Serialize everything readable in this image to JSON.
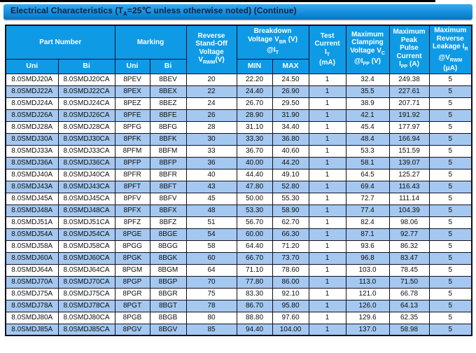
{
  "title": {
    "segments": [
      [
        "t",
        "Electrical Characteristics (T"
      ],
      [
        "s",
        "A"
      ],
      [
        "t",
        "=25℃  unless otherwise noted) (Continue)"
      ]
    ]
  },
  "colors": {
    "title_bar_top": "#3aa9ee",
    "title_bar_mid": "#1590dd",
    "title_bar_bottom": "#0b76c4",
    "title_text": "#0d1f3c",
    "header_bg": "#0f9ae6",
    "row_alt_bg": "#a5c8f0",
    "grid_border": "#10101e"
  },
  "table": {
    "headers": {
      "part_number": "Part Number",
      "marking": "Marking",
      "uni": "Uni",
      "bi": "Bi",
      "min": "MIN",
      "max": "MAX",
      "reverse_standoff": [
        [
          "t",
          "Reverse"
        ],
        [
          "b",
          ""
        ],
        [
          "t",
          "Stand-Off"
        ],
        [
          "b",
          ""
        ],
        [
          "t",
          "Voltage"
        ],
        [
          "b",
          ""
        ],
        [
          "t",
          "V"
        ],
        [
          "s",
          "RWM"
        ],
        [
          "t",
          "(V)"
        ]
      ],
      "breakdown": [
        [
          "t",
          "Breakdown"
        ],
        [
          "b",
          ""
        ],
        [
          "t",
          "Voltage V"
        ],
        [
          "s",
          "BR"
        ],
        [
          "t",
          "  (V)"
        ],
        [
          "b",
          ""
        ],
        [
          "t",
          "@I"
        ],
        [
          "s",
          "T"
        ]
      ],
      "test_current": [
        [
          "t",
          "Test"
        ],
        [
          "b",
          ""
        ],
        [
          "t",
          "Current"
        ],
        [
          "b",
          ""
        ],
        [
          "t",
          "I"
        ],
        [
          "s",
          "T"
        ],
        [
          "b",
          ""
        ],
        [
          "t",
          "(mA)"
        ]
      ],
      "clamping": [
        [
          "t",
          "Maximum"
        ],
        [
          "b",
          ""
        ],
        [
          "t",
          "Clamping"
        ],
        [
          "b",
          ""
        ],
        [
          "t",
          "Voltage V"
        ],
        [
          "s",
          "C"
        ],
        [
          "b",
          ""
        ],
        [
          "t",
          "@I"
        ],
        [
          "s",
          "PP"
        ],
        [
          "t",
          " (V)"
        ]
      ],
      "peak_pulse": [
        [
          "t",
          "Maximum"
        ],
        [
          "b",
          ""
        ],
        [
          "t",
          "Peak"
        ],
        [
          "b",
          ""
        ],
        [
          "t",
          "Pulse"
        ],
        [
          "b",
          ""
        ],
        [
          "t",
          "Current"
        ],
        [
          "b",
          ""
        ],
        [
          "t",
          "I"
        ],
        [
          "s",
          "PP"
        ],
        [
          "t",
          " (A)"
        ]
      ],
      "leakage": [
        [
          "t",
          "Maximum"
        ],
        [
          "b",
          ""
        ],
        [
          "t",
          "Reverse"
        ],
        [
          "b",
          ""
        ],
        [
          "t",
          "Leakage I"
        ],
        [
          "s",
          "R"
        ],
        [
          "b",
          ""
        ],
        [
          "t",
          "@V"
        ],
        [
          "s",
          "RWM"
        ],
        [
          "b",
          ""
        ],
        [
          "t",
          "(μA)"
        ]
      ]
    },
    "rows": [
      [
        "8.0SMDJ20A",
        "8.0SMDJ20CA",
        "8PEV",
        "8BEV",
        "20",
        "22.20",
        "24.50",
        "1",
        "32.4",
        "249.38",
        "5"
      ],
      [
        "8.0SMDJ22A",
        "8.0SMDJ22CA",
        "8PEX",
        "8BEX",
        "22",
        "24.40",
        "26.90",
        "1",
        "35.5",
        "227.61",
        "5"
      ],
      [
        "8.0SMDJ24A",
        "8.0SMDJ24CA",
        "8PEZ",
        "8BEZ",
        "24",
        "26.70",
        "29.50",
        "1",
        "38.9",
        "207.71",
        "5"
      ],
      [
        "8.0SMDJ26A",
        "8.0SMDJ26CA",
        "8PFE",
        "8BFE",
        "26",
        "28.90",
        "31.90",
        "1",
        "42.1",
        "191.92",
        "5"
      ],
      [
        "8.0SMDJ28A",
        "8.0SMDJ28CA",
        "8PFG",
        "8BFG",
        "28",
        "31.10",
        "34.40",
        "1",
        "45.4",
        "177.97",
        "5"
      ],
      [
        "8.0SMDJ30A",
        "8.0SMDJ30CA",
        "8PFK",
        "8BFK",
        "30",
        "33.30",
        "36.80",
        "1",
        "48.4",
        "166.94",
        "5"
      ],
      [
        "8.0SMDJ33A",
        "8.0SMDJ33CA",
        "8PFM",
        "8BFM",
        "33",
        "36.70",
        "40.60",
        "1",
        "53.3",
        "151.59",
        "5"
      ],
      [
        "8.0SMDJ36A",
        "8.0SMDJ36CA",
        "8PFP",
        "8BFP",
        "36",
        "40.00",
        "44.20",
        "1",
        "58.1",
        "139.07",
        "5"
      ],
      [
        "8.0SMDJ40A",
        "8.0SMDJ40CA",
        "8PFR",
        "8BFR",
        "40",
        "44.40",
        "49.10",
        "1",
        "64.5",
        "125.27",
        "5"
      ],
      [
        "8.0SMDJ43A",
        "8.0SMDJ43CA",
        "8PFT",
        "8BFT",
        "43",
        "47.80",
        "52.80",
        "1",
        "69.4",
        "116.43",
        "5"
      ],
      [
        "8.0SMDJ45A",
        "8.0SMDJ45CA",
        "8PFV",
        "8BFV",
        "45",
        "50.00",
        "55.30",
        "1",
        "72.7",
        "111.14",
        "5"
      ],
      [
        "8.0SMDJ48A",
        "8.0SMDJ48CA",
        "8PFX",
        "8BFX",
        "48",
        "53.30",
        "58.90",
        "1",
        "77.4",
        "104.39",
        "5"
      ],
      [
        "8.0SMDJ51A",
        "8.0SMDJ51CA",
        "8PFZ",
        "8BFZ",
        "51",
        "56.70",
        "62.70",
        "1",
        "82.4",
        "98.06",
        "5"
      ],
      [
        "8.0SMDJ54A",
        "8.0SMDJ54CA",
        "8PGE",
        "8BGE",
        "54",
        "60.00",
        "66.30",
        "1",
        "87.1",
        "92.77",
        "5"
      ],
      [
        "8.0SMDJ58A",
        "8.0SMDJ58CA",
        "8PGG",
        "8BGG",
        "58",
        "64.40",
        "71.20",
        "1",
        "93.6",
        "86.32",
        "5"
      ],
      [
        "8.0SMDJ60A",
        "8.0SMDJ60CA",
        "8PGK",
        "8BGK",
        "60",
        "66.70",
        "73.70",
        "1",
        "96.8",
        "83.47",
        "5"
      ],
      [
        "8.0SMDJ64A",
        "8.0SMDJ64CA",
        "8PGM",
        "8BGM",
        "64",
        "71.10",
        "78.60",
        "1",
        "103.0",
        "78.45",
        "5"
      ],
      [
        "8.0SMDJ70A",
        "8.0SMDJ70CA",
        "8PGP",
        "8BGP",
        "70",
        "77.80",
        "86.00",
        "1",
        "113.0",
        "71.50",
        "5"
      ],
      [
        "8.0SMDJ75A",
        "8.0SMDJ75CA",
        "8PGR",
        "8BGR",
        "75",
        "83.30",
        "92.10",
        "1",
        "121.0",
        "66.78",
        "5"
      ],
      [
        "8.0SMDJ78A",
        "8.0SMDJ78CA",
        "8PGT",
        "8BGT",
        "78",
        "86.70",
        "95.80",
        "1",
        "126.0",
        "64.13",
        "5"
      ],
      [
        "8.0SMDJ80A",
        "8.0SMDJ80CA",
        "8PGB",
        "8BGB",
        "80",
        "88.80",
        "97.60",
        "1",
        "129.6",
        "62.35",
        "5"
      ],
      [
        "8.0SMDJ85A",
        "8.0SMDJ85CA",
        "8PGV",
        "8BGV",
        "85",
        "94.40",
        "104.00",
        "1",
        "137.0",
        "58.98",
        "5"
      ]
    ]
  }
}
